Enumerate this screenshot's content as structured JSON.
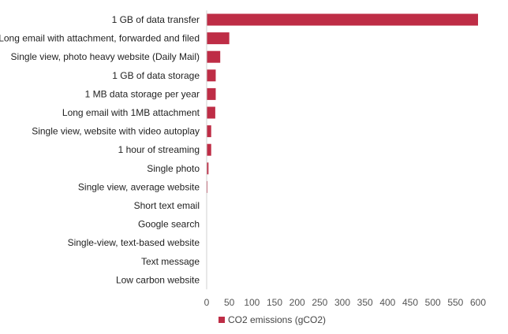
{
  "chart_data": {
    "type": "bar",
    "orientation": "horizontal",
    "categories": [
      "1 GB of data transfer",
      "Long email with attachment, forwarded and filed",
      "Single view, photo heavy website (Daily Mail)",
      "1 GB of data storage",
      "1 MB data storage per year",
      "Long email with 1MB attachment",
      "Single view, website with video autoplay",
      "1 hour of streaming",
      "Single photo",
      "Single view, average website",
      "Short text email",
      "Google search",
      "Single-view, text-based website",
      "Text message",
      "Low carbon website"
    ],
    "series": [
      {
        "name": "CO2 emissions (gCO2)",
        "color": "#be2d46",
        "values": [
          600,
          50,
          30,
          20,
          20,
          19,
          10,
          10,
          4,
          1.8,
          0.3,
          0.2,
          0.2,
          0.014,
          0.01
        ]
      }
    ],
    "x_ticks": [
      "0",
      "50",
      "100",
      "150",
      "200",
      "250",
      "300",
      "350",
      "400",
      "450",
      "500",
      "550",
      "600"
    ],
    "xlim": [
      0,
      600
    ],
    "grid": false,
    "legend_position": "bottom"
  }
}
